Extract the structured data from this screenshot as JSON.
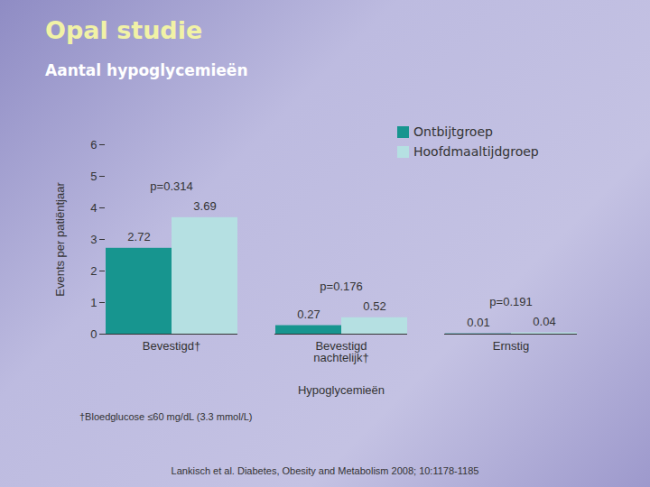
{
  "chart_data": {
    "type": "bar",
    "title": "Opal studie",
    "subtitle": "Aantal hypoglycemieën",
    "ylabel": "Events per patiëntjaar",
    "xlabel": "Hypoglycemieën",
    "categories": [
      "Bevestigd†",
      "Bevestigd nachtelijk†",
      "Ernstig"
    ],
    "series": [
      {
        "name": "Ontbijtgroep",
        "color": "#17958f",
        "values": [
          2.72,
          0.27,
          0.01
        ]
      },
      {
        "name": "Hoofdmaaltijdgroep",
        "color": "#b5e0e2",
        "values": [
          3.69,
          0.52,
          0.04
        ]
      }
    ],
    "annotations": [
      "p=0.314",
      "p=0.176",
      "p=0.191"
    ],
    "ylim": [
      0,
      6
    ],
    "yticks": [
      0,
      1,
      2,
      3,
      4,
      5,
      6
    ],
    "data_labels": true,
    "legend": "top-right",
    "grid": false,
    "footnote": "†Bloedglucose ≤60 mg/dL (3.3 mmol/L)",
    "source": "Lankisch et al. Diabetes, Obesity and Metabolism 2008; 10:1178-1185"
  }
}
